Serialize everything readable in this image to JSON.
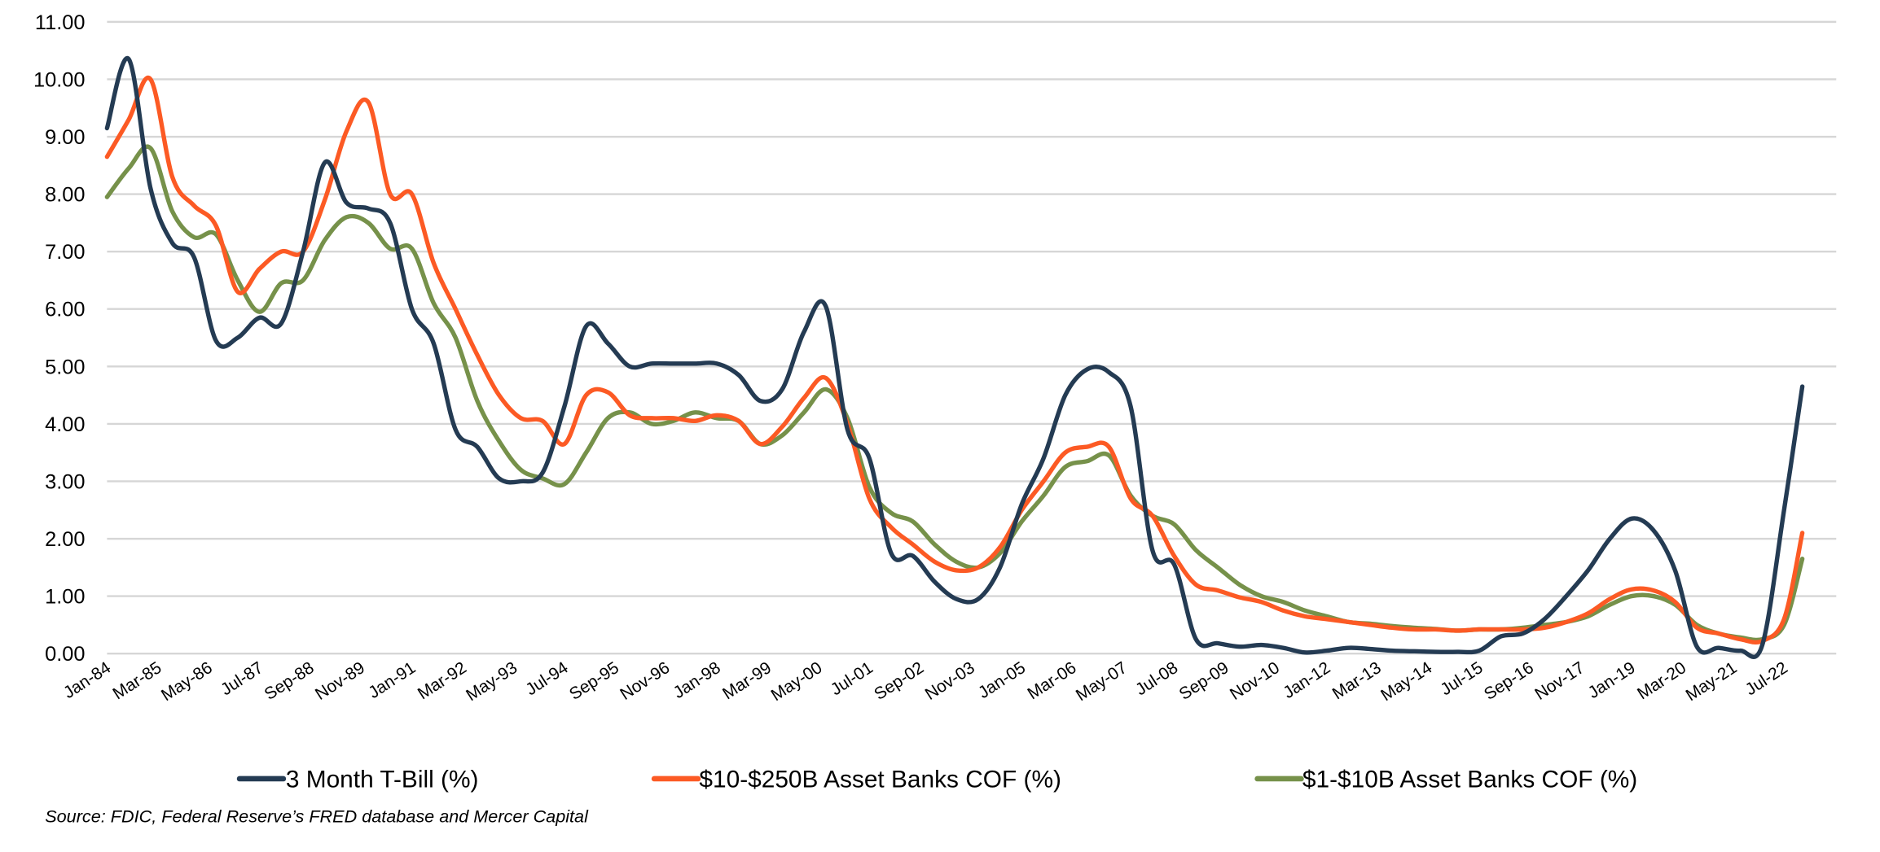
{
  "chart_data": {
    "type": "line",
    "title": "",
    "xlabel": "",
    "ylabel": "",
    "ylim": [
      0,
      11
    ],
    "yticks": [
      "0.00",
      "1.00",
      "2.00",
      "3.00",
      "4.00",
      "5.00",
      "6.00",
      "7.00",
      "8.00",
      "9.00",
      "10.00",
      "11.00"
    ],
    "xtick_labels": [
      "Jan-84",
      "Mar-85",
      "May-86",
      "Jul-87",
      "Sep-88",
      "Nov-89",
      "Jan-91",
      "Mar-92",
      "May-93",
      "Jul-94",
      "Sep-95",
      "Nov-96",
      "Jan-98",
      "Mar-99",
      "May-00",
      "Jul-01",
      "Sep-02",
      "Nov-03",
      "Jan-05",
      "Mar-06",
      "May-07",
      "Jul-08",
      "Sep-09",
      "Nov-10",
      "Jan-12",
      "Mar-13",
      "May-14",
      "Jul-15",
      "Sep-16",
      "Nov-17",
      "Jan-19",
      "Mar-20",
      "May-21",
      "Jul-22"
    ],
    "grid": true,
    "legend_position": "bottom",
    "x": [
      "1984.0",
      "1984.5",
      "1985.0",
      "1985.5",
      "1986.0",
      "1986.5",
      "1987.0",
      "1987.5",
      "1988.0",
      "1988.5",
      "1989.0",
      "1989.5",
      "1990.0",
      "1990.5",
      "1991.0",
      "1991.5",
      "1992.0",
      "1992.5",
      "1993.0",
      "1993.5",
      "1994.0",
      "1994.5",
      "1995.0",
      "1995.5",
      "1996.0",
      "1996.5",
      "1997.0",
      "1997.5",
      "1998.0",
      "1998.5",
      "1999.0",
      "1999.5",
      "2000.0",
      "2000.5",
      "2001.0",
      "2001.5",
      "2002.0",
      "2002.5",
      "2003.0",
      "2003.5",
      "2004.0",
      "2004.5",
      "2005.0",
      "2005.5",
      "2006.0",
      "2006.5",
      "2007.0",
      "2007.5",
      "2008.0",
      "2008.5",
      "2009.0",
      "2009.5",
      "2010.0",
      "2010.5",
      "2011.0",
      "2011.5",
      "2012.0",
      "2012.5",
      "2013.0",
      "2013.5",
      "2014.0",
      "2014.5",
      "2015.0",
      "2015.5",
      "2016.0",
      "2016.5",
      "2017.0",
      "2017.5",
      "2018.0",
      "2018.5",
      "2019.0",
      "2019.5",
      "2020.0",
      "2020.5",
      "2021.0",
      "2021.5",
      "2022.0",
      "2022.5",
      "2022.92"
    ],
    "series": [
      {
        "name": "3 Month T-Bill (%)",
        "color": "#243b53",
        "values": [
          9.15,
          10.35,
          8.1,
          7.15,
          6.9,
          5.45,
          5.5,
          5.85,
          5.75,
          7.0,
          8.55,
          7.85,
          7.75,
          7.5,
          6.0,
          5.4,
          3.9,
          3.6,
          3.05,
          3.0,
          3.15,
          4.3,
          5.7,
          5.4,
          5.0,
          5.05,
          5.05,
          5.05,
          5.05,
          4.85,
          4.4,
          4.6,
          5.6,
          6.05,
          3.9,
          3.4,
          1.75,
          1.7,
          1.25,
          0.95,
          0.95,
          1.5,
          2.6,
          3.4,
          4.5,
          4.95,
          4.9,
          4.3,
          1.8,
          1.55,
          0.25,
          0.18,
          0.12,
          0.15,
          0.1,
          0.02,
          0.05,
          0.1,
          0.08,
          0.05,
          0.04,
          0.03,
          0.03,
          0.05,
          0.3,
          0.35,
          0.6,
          1.0,
          1.45,
          2.0,
          2.35,
          2.15,
          1.45,
          0.12,
          0.1,
          0.05,
          0.15,
          2.5,
          4.65
        ]
      },
      {
        "name": "$10-$250B Asset Banks COF (%)",
        "color": "#fc5a24",
        "values": [
          8.65,
          9.3,
          10.0,
          8.3,
          7.8,
          7.45,
          6.3,
          6.7,
          7.0,
          7.0,
          7.9,
          9.1,
          9.6,
          8.0,
          8.0,
          6.8,
          6.0,
          5.2,
          4.5,
          4.1,
          4.05,
          3.65,
          4.5,
          4.55,
          4.15,
          4.1,
          4.1,
          4.05,
          4.15,
          4.05,
          3.65,
          3.95,
          4.45,
          4.8,
          4.0,
          2.7,
          2.2,
          1.9,
          1.6,
          1.45,
          1.5,
          1.85,
          2.5,
          3.0,
          3.5,
          3.6,
          3.6,
          2.7,
          2.4,
          1.7,
          1.2,
          1.1,
          0.98,
          0.9,
          0.75,
          0.65,
          0.6,
          0.55,
          0.5,
          0.45,
          0.42,
          0.42,
          0.4,
          0.42,
          0.42,
          0.42,
          0.45,
          0.55,
          0.7,
          0.95,
          1.12,
          1.1,
          0.9,
          0.45,
          0.35,
          0.25,
          0.22,
          0.6,
          2.1
        ]
      },
      {
        "name": "$1-$10B Asset Banks COF (%)",
        "color": "#76914a",
        "values": [
          7.95,
          8.45,
          8.8,
          7.7,
          7.25,
          7.3,
          6.5,
          5.95,
          6.45,
          6.5,
          7.2,
          7.6,
          7.5,
          7.05,
          7.05,
          6.1,
          5.5,
          4.4,
          3.7,
          3.2,
          3.05,
          2.95,
          3.5,
          4.1,
          4.2,
          4.0,
          4.05,
          4.2,
          4.1,
          4.05,
          3.65,
          3.8,
          4.2,
          4.6,
          4.1,
          2.9,
          2.45,
          2.3,
          1.9,
          1.6,
          1.5,
          1.75,
          2.3,
          2.75,
          3.25,
          3.35,
          3.45,
          2.75,
          2.4,
          2.25,
          1.8,
          1.5,
          1.2,
          1.0,
          0.9,
          0.75,
          0.65,
          0.55,
          0.52,
          0.48,
          0.45,
          0.43,
          0.4,
          0.42,
          0.42,
          0.45,
          0.5,
          0.55,
          0.65,
          0.85,
          1.0,
          1.0,
          0.85,
          0.5,
          0.35,
          0.28,
          0.25,
          0.5,
          1.65
        ]
      }
    ]
  },
  "source_note": "Source: FDIC, Federal Reserve’s FRED database and Mercer Capital"
}
